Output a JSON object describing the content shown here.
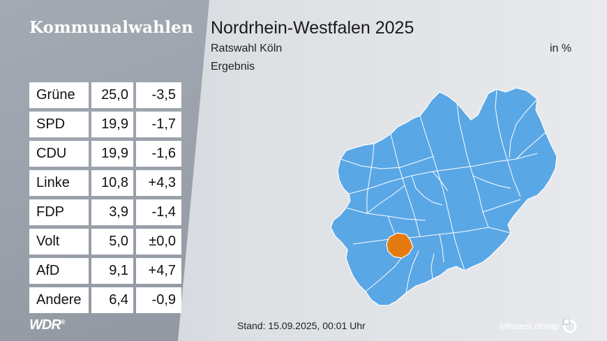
{
  "header": {
    "brand": "Kommunalwahlen",
    "title": "Nordrhein-Westfalen 2025",
    "subtitle": "Ratswahl Köln",
    "subtitle2": "Ergebnis",
    "unit": "in %"
  },
  "results": [
    {
      "party": "Grüne",
      "value": "25,0",
      "diff": "-3,5"
    },
    {
      "party": "SPD",
      "value": "19,9",
      "diff": "-1,7"
    },
    {
      "party": "CDU",
      "value": "19,9",
      "diff": "-1,6"
    },
    {
      "party": "Linke",
      "value": "10,8",
      "diff": "+4,3"
    },
    {
      "party": "FDP",
      "value": "3,9",
      "diff": "-1,4"
    },
    {
      "party": "Volt",
      "value": "5,0",
      "diff": "±0,0"
    },
    {
      "party": "AfD",
      "value": "9,1",
      "diff": "+4,7"
    },
    {
      "party": "Andere",
      "value": "6,4",
      "diff": "-0,9"
    }
  ],
  "map": {
    "region_color": "#5aa7e6",
    "highlight_color": "#e57b0e",
    "border_color": "#ffffff"
  },
  "footer": {
    "logo": "WDR",
    "logo_mark": "®",
    "stand": "Stand: 15.09.2025, 00:01 Uhr",
    "pollster": "infratest dimap"
  }
}
